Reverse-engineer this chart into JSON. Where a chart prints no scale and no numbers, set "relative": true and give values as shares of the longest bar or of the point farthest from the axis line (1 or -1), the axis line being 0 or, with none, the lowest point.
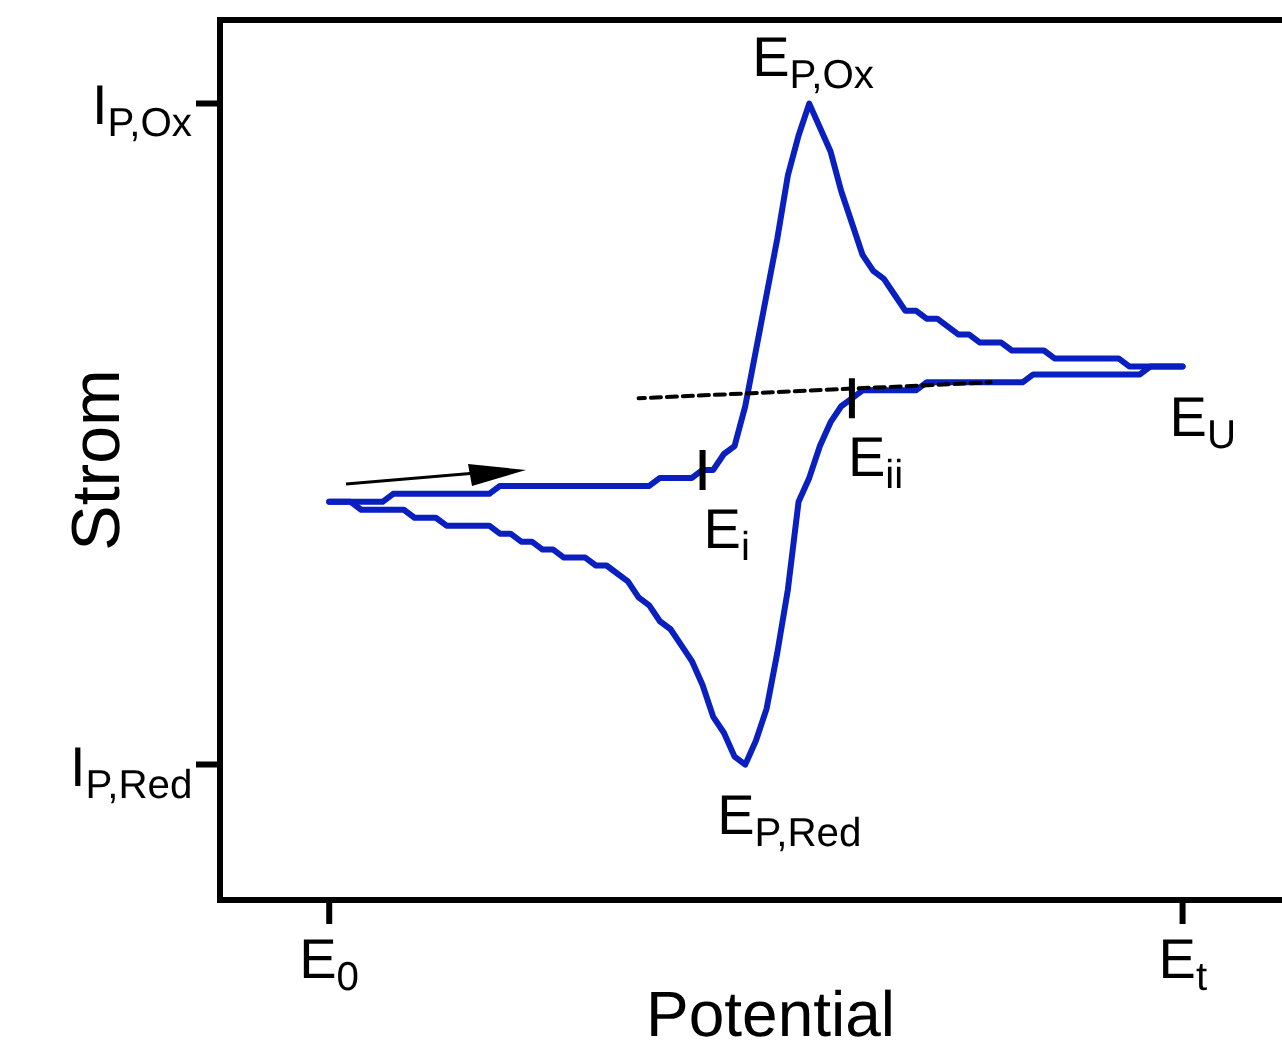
{
  "chart_data": {
    "type": "line",
    "relative": true,
    "xlabel": "Potential",
    "ylabel": "Strom",
    "marker": "none",
    "categories": [
      "E$_{0}$",
      null,
      null,
      null,
      null,
      null,
      null,
      null,
      null,
      null,
      null,
      null,
      null,
      null,
      null,
      null,
      null,
      null,
      null,
      null,
      null,
      null,
      null,
      null,
      null,
      null,
      null,
      null,
      null,
      null,
      null,
      null,
      null,
      null,
      null,
      null,
      null,
      null,
      null,
      null,
      null,
      null,
      null,
      null,
      null,
      null,
      null,
      null,
      null,
      null,
      null,
      null,
      null,
      null,
      null,
      null,
      null,
      null,
      null,
      null,
      null,
      null,
      null,
      null,
      null,
      null,
      null,
      null,
      null,
      null,
      null,
      null,
      null,
      null,
      null,
      null,
      null,
      null,
      null,
      null,
      "E$_{t}$"
    ],
    "series": [
      {
        "color": "#0a1fbf",
        "line_style": "solid",
        "values": [
          0.5,
          0.5,
          0.5,
          0.5,
          0.5,
          0.5,
          0.51,
          0.51,
          0.51,
          0.51,
          0.51,
          0.51,
          0.51,
          0.51,
          0.51,
          0.51,
          0.52,
          0.52,
          0.52,
          0.52,
          0.52,
          0.52,
          0.52,
          0.52,
          0.52,
          0.52,
          0.52,
          0.52,
          0.52,
          0.52,
          0.52,
          0.53,
          0.53,
          0.53,
          0.53,
          0.54,
          0.54,
          0.56,
          0.57,
          0.62,
          0.69,
          0.76,
          0.83,
          0.91,
          0.96,
          1,
          0.97,
          0.94,
          0.89,
          0.85,
          0.81,
          0.79,
          0.78,
          0.76,
          0.74,
          0.74,
          0.73,
          0.73,
          0.72,
          0.71,
          0.71,
          0.7,
          0.7,
          0.7,
          0.69,
          0.69,
          0.69,
          0.69,
          0.68,
          0.68,
          0.68,
          0.68,
          0.68,
          0.68,
          0.68,
          0.67,
          0.67,
          0.67,
          0.67,
          0.67,
          0.67
        ]
      },
      {
        "color": "#0a1fbf",
        "line_style": "solid",
        "values": [
          0.5,
          0.5,
          0.5,
          0.49,
          0.49,
          0.49,
          0.49,
          0.49,
          0.48,
          0.48,
          0.48,
          0.47,
          0.47,
          0.47,
          0.47,
          0.47,
          0.46,
          0.46,
          0.45,
          0.45,
          0.44,
          0.44,
          0.43,
          0.43,
          0.43,
          0.42,
          0.42,
          0.41,
          0.4,
          0.38,
          0.37,
          0.35,
          0.34,
          0.32,
          0.3,
          0.27,
          0.23,
          0.21,
          0.18,
          0.17,
          0.2,
          0.24,
          0.31,
          0.39,
          0.5,
          0.53,
          0.57,
          0.6,
          0.62,
          0.63,
          0.64,
          0.64,
          0.64,
          0.64,
          0.64,
          0.64,
          0.65,
          0.65,
          0.65,
          0.65,
          0.65,
          0.65,
          0.65,
          0.65,
          0.65,
          0.65,
          0.66,
          0.66,
          0.66,
          0.66,
          0.66,
          0.66,
          0.66,
          0.66,
          0.66,
          0.66,
          0.66,
          0.67,
          0.67,
          0.67,
          0.67
        ]
      },
      {
        "type": "line",
        "color": "#000000",
        "line_style": "dashed",
        "values": [
          null,
          null,
          null,
          null,
          null,
          null,
          null,
          null,
          null,
          null,
          null,
          null,
          null,
          null,
          null,
          null,
          null,
          null,
          null,
          null,
          null,
          null,
          null,
          null,
          null,
          null,
          null,
          null,
          null,
          0.63,
          null,
          null,
          null,
          null,
          null,
          null,
          null,
          null,
          null,
          null,
          null,
          null,
          null,
          null,
          null,
          null,
          null,
          null,
          null,
          null,
          null,
          null,
          null,
          null,
          null,
          null,
          null,
          null,
          null,
          null,
          null,
          null,
          0.65,
          null,
          null,
          null,
          null,
          null,
          null,
          null,
          null,
          null,
          null,
          null,
          null,
          null,
          null,
          null,
          null,
          null,
          null
        ]
      }
    ],
    "annotations": [
      "E$_{P,Ox}$",
      "E$_{i}$",
      "E$_{ii}$",
      "E$_{U}$",
      "E$_{P,Red}$",
      "I$_{P,Ox}$",
      "I$_{P,Red}$"
    ]
  }
}
